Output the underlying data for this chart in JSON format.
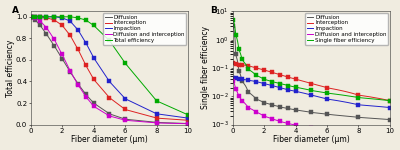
{
  "panel_A": {
    "title": "A",
    "xlabel": "Fiber diameter (μm)",
    "ylabel": "Total efficiency",
    "xlim": [
      0,
      10
    ],
    "ylim": [
      0.0,
      1.05
    ],
    "yticks": [
      0.0,
      0.2,
      0.4,
      0.6,
      0.8,
      1.0
    ],
    "xticks": [
      0,
      2,
      4,
      6,
      8,
      10
    ],
    "x_data": [
      0.05,
      0.3,
      0.6,
      1.0,
      1.5,
      2.0,
      2.5,
      3.0,
      3.5,
      4.0,
      5.0,
      6.0,
      8.0,
      10.0
    ],
    "series": {
      "Diffusion": {
        "color": "#555555",
        "marker": "s",
        "y": [
          1.0,
          0.97,
          0.92,
          0.84,
          0.73,
          0.61,
          0.49,
          0.38,
          0.28,
          0.2,
          0.1,
          0.05,
          0.02,
          0.01
        ]
      },
      "Interception": {
        "color": "#dd2222",
        "marker": "s",
        "y": [
          1.0,
          1.0,
          1.0,
          0.99,
          0.97,
          0.92,
          0.83,
          0.7,
          0.55,
          0.42,
          0.25,
          0.14,
          0.06,
          0.04
        ]
      },
      "Impaction": {
        "color": "#2222cc",
        "marker": "s",
        "y": [
          1.0,
          1.0,
          1.0,
          1.0,
          1.0,
          0.99,
          0.96,
          0.88,
          0.76,
          0.62,
          0.4,
          0.24,
          0.1,
          0.06
        ]
      },
      "Diffusion and interception": {
        "color": "#cc00cc",
        "marker": "s",
        "y": [
          1.0,
          0.99,
          0.96,
          0.9,
          0.79,
          0.65,
          0.5,
          0.37,
          0.26,
          0.17,
          0.08,
          0.04,
          0.015,
          0.008
        ]
      },
      "Total efficiency": {
        "color": "#00aa00",
        "marker": "s",
        "y": [
          1.0,
          1.0,
          1.0,
          1.0,
          1.0,
          1.0,
          1.0,
          0.99,
          0.97,
          0.92,
          0.78,
          0.57,
          0.22,
          0.09
        ]
      }
    }
  },
  "panel_B": {
    "title": "B",
    "xlabel": "Fiber diameter (μm)",
    "ylabel": "Single fiber efficiency",
    "xlim": [
      0,
      10
    ],
    "ylim_log": [
      0.001,
      10
    ],
    "xticks": [
      0,
      2,
      4,
      6,
      8,
      10
    ],
    "x_data": [
      0.05,
      0.2,
      0.4,
      0.6,
      1.0,
      1.5,
      2.0,
      2.5,
      3.0,
      3.5,
      4.0,
      5.0,
      6.0,
      8.0,
      10.0
    ],
    "series": {
      "Diffusion": {
        "color": "#555555",
        "marker": "s",
        "y": [
          3.0,
          0.3,
          0.08,
          0.035,
          0.014,
          0.008,
          0.006,
          0.005,
          0.0042,
          0.0037,
          0.0033,
          0.0027,
          0.0023,
          0.0018,
          0.0015
        ]
      },
      "Interception": {
        "color": "#dd2222",
        "marker": "s",
        "y": [
          0.15,
          0.14,
          0.13,
          0.13,
          0.12,
          0.1,
          0.085,
          0.07,
          0.058,
          0.048,
          0.04,
          0.028,
          0.02,
          0.011,
          0.007
        ]
      },
      "Impaction": {
        "color": "#2222cc",
        "marker": "s",
        "y": [
          0.045,
          0.043,
          0.042,
          0.04,
          0.037,
          0.033,
          0.028,
          0.024,
          0.02,
          0.017,
          0.015,
          0.011,
          0.008,
          0.005,
          0.004
        ]
      },
      "Diffusion and interception": {
        "color": "#cc00cc",
        "marker": "s",
        "y": [
          0.035,
          0.018,
          0.01,
          0.007,
          0.004,
          0.0028,
          0.002,
          0.0016,
          0.0013,
          0.0011,
          0.00095,
          0.00075,
          0.00062,
          0.00048,
          0.0004
        ]
      },
      "Single fiber efficiency": {
        "color": "#00aa00",
        "marker": "s",
        "y": [
          5.0,
          1.5,
          0.45,
          0.2,
          0.09,
          0.055,
          0.04,
          0.033,
          0.028,
          0.024,
          0.021,
          0.016,
          0.013,
          0.009,
          0.007
        ]
      }
    }
  },
  "bg_color": "#f0ece0",
  "line_width": 0.7,
  "marker_size": 2.2,
  "font_size": 5,
  "label_font_size": 5.5,
  "legend_font_size": 4.0,
  "title_fontsize": 6.5
}
